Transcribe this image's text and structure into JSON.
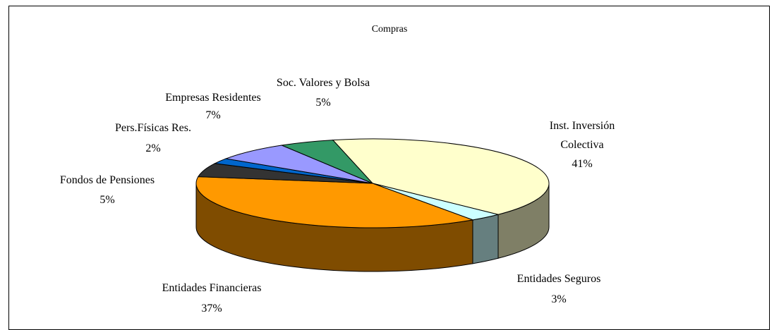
{
  "chart_data": {
    "type": "pie3d",
    "title": "Compras",
    "categories": [
      "Inst. Inversión Colectiva",
      "Entidades Seguros",
      "Entidades Financieras",
      "Fondos de Pensiones",
      "Pers.Físicas Res.",
      "Empresas Residentes",
      "Soc. Valores y Bolsa"
    ],
    "values": [
      41,
      3,
      37,
      5,
      2,
      7,
      5
    ],
    "value_labels": [
      "41%",
      "3%",
      "37%",
      "5%",
      "2%",
      "7%",
      "5%"
    ],
    "colors": [
      "#ffffcc",
      "#ccffff",
      "#ff9900",
      "#333333",
      "#0066cc",
      "#9999ff",
      "#339966"
    ]
  }
}
